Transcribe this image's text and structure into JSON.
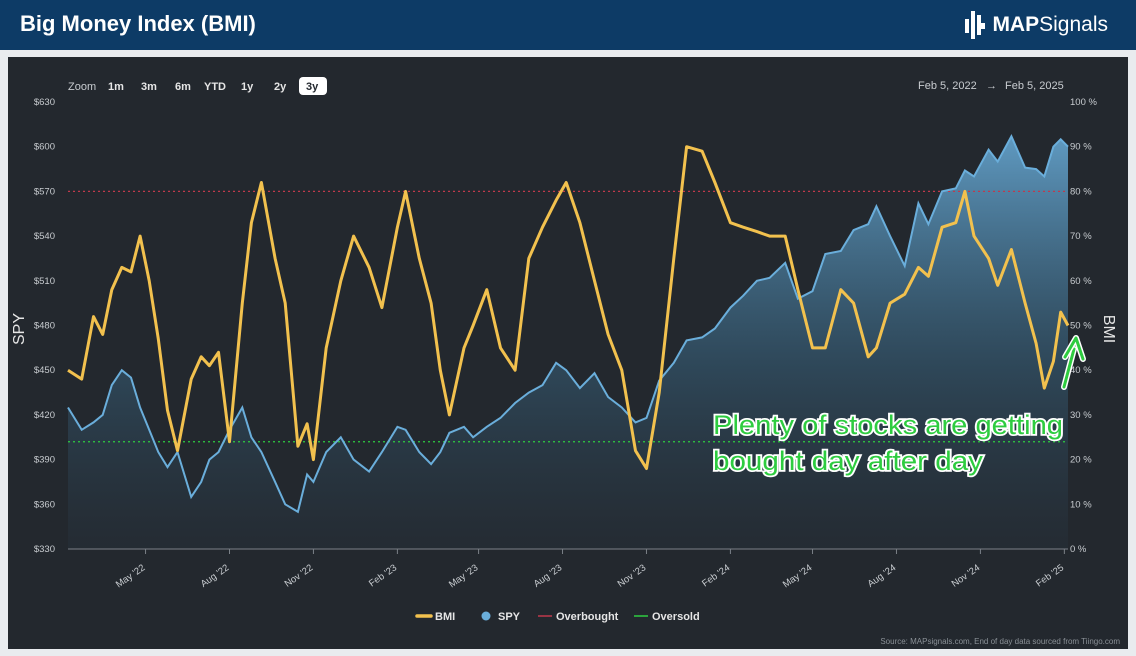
{
  "header": {
    "title": "Big Money Index (BMI)",
    "logo_bold": "MAP",
    "logo_regular": "Signals"
  },
  "toolbar": {
    "zoom_label": "Zoom",
    "buttons": [
      "1m",
      "3m",
      "6m",
      "YTD",
      "1y",
      "2y",
      "3y"
    ],
    "active": "3y",
    "date_from": "Feb 5, 2022",
    "date_arrow": "→",
    "date_to": "Feb 5, 2025"
  },
  "annotation": {
    "line1": "Plenty of stocks are getting",
    "line2": "bought day after day",
    "color": "#2ecc40"
  },
  "source": "Source: MAPsignals.com, End of day data sourced from Tiingo.com",
  "chart_data": {
    "type": "line",
    "title": "",
    "x_range": [
      "2022-02-05",
      "2025-02-05"
    ],
    "x_ticks": [
      "May '22",
      "Aug '22",
      "Nov '22",
      "Feb '23",
      "May '23",
      "Aug '23",
      "Nov '23",
      "Feb '24",
      "May '24",
      "Aug '24",
      "Nov '24",
      "Feb '25"
    ],
    "y_left": {
      "label": "SPY",
      "ticks": [
        "$630",
        "$600",
        "$570",
        "$540",
        "$510",
        "$480",
        "$450",
        "$420",
        "$390",
        "$360",
        "$330"
      ],
      "range": [
        330,
        630
      ]
    },
    "y_right": {
      "label": "BMI",
      "ticks": [
        "100 %",
        "90 %",
        "80 %",
        "70 %",
        "60 %",
        "50 %",
        "40 %",
        "30 %",
        "20 %",
        "10 %",
        "0 %"
      ],
      "range": [
        0,
        100
      ]
    },
    "legend_position": "bottom-center",
    "legend": [
      {
        "name": "BMI",
        "color": "#f2c14e"
      },
      {
        "name": "SPY",
        "color": "#6aaedb"
      },
      {
        "name": "Overbought",
        "color": "#c0394b"
      },
      {
        "name": "Oversold",
        "color": "#2ecc40"
      }
    ],
    "overbought_level": 80,
    "oversold_level": 24,
    "series": [
      {
        "name": "BMI",
        "color": "#f2c14e",
        "axis": "right",
        "points": [
          [
            "2022-02-05",
            40
          ],
          [
            "2022-02-20",
            38
          ],
          [
            "2022-03-05",
            52
          ],
          [
            "2022-03-15",
            48
          ],
          [
            "2022-03-25",
            58
          ],
          [
            "2022-04-05",
            63
          ],
          [
            "2022-04-15",
            62
          ],
          [
            "2022-04-25",
            70
          ],
          [
            "2022-05-05",
            60
          ],
          [
            "2022-05-15",
            47
          ],
          [
            "2022-05-25",
            31
          ],
          [
            "2022-06-05",
            22
          ],
          [
            "2022-06-20",
            38
          ],
          [
            "2022-07-01",
            43
          ],
          [
            "2022-07-10",
            41
          ],
          [
            "2022-07-20",
            44
          ],
          [
            "2022-08-01",
            24
          ],
          [
            "2022-08-15",
            55
          ],
          [
            "2022-08-25",
            73
          ],
          [
            "2022-09-05",
            82
          ],
          [
            "2022-09-20",
            65
          ],
          [
            "2022-10-01",
            55
          ],
          [
            "2022-10-15",
            23
          ],
          [
            "2022-10-25",
            28
          ],
          [
            "2022-11-01",
            20
          ],
          [
            "2022-11-15",
            45
          ],
          [
            "2022-12-01",
            60
          ],
          [
            "2022-12-15",
            70
          ],
          [
            "2023-01-01",
            63
          ],
          [
            "2023-01-15",
            54
          ],
          [
            "2023-02-01",
            72
          ],
          [
            "2023-02-10",
            80
          ],
          [
            "2023-02-25",
            65
          ],
          [
            "2023-03-10",
            55
          ],
          [
            "2023-03-20",
            40
          ],
          [
            "2023-03-30",
            30
          ],
          [
            "2023-04-15",
            45
          ],
          [
            "2023-04-25",
            50
          ],
          [
            "2023-05-10",
            58
          ],
          [
            "2023-05-25",
            45
          ],
          [
            "2023-06-10",
            40
          ],
          [
            "2023-06-25",
            65
          ],
          [
            "2023-07-10",
            72
          ],
          [
            "2023-07-25",
            78
          ],
          [
            "2023-08-05",
            82
          ],
          [
            "2023-08-20",
            73
          ],
          [
            "2023-09-05",
            60
          ],
          [
            "2023-09-20",
            48
          ],
          [
            "2023-10-05",
            40
          ],
          [
            "2023-10-20",
            22
          ],
          [
            "2023-11-01",
            18
          ],
          [
            "2023-11-15",
            35
          ],
          [
            "2023-12-01",
            65
          ],
          [
            "2023-12-15",
            90
          ],
          [
            "2024-01-01",
            89
          ],
          [
            "2024-01-15",
            82
          ],
          [
            "2024-02-01",
            73
          ],
          [
            "2024-02-15",
            72
          ],
          [
            "2024-03-01",
            71
          ],
          [
            "2024-03-15",
            70
          ],
          [
            "2024-04-01",
            70
          ],
          [
            "2024-04-15",
            58
          ],
          [
            "2024-05-01",
            45
          ],
          [
            "2024-05-15",
            45
          ],
          [
            "2024-06-01",
            58
          ],
          [
            "2024-06-15",
            55
          ],
          [
            "2024-07-01",
            43
          ],
          [
            "2024-07-10",
            45
          ],
          [
            "2024-07-25",
            55
          ],
          [
            "2024-08-10",
            57
          ],
          [
            "2024-08-25",
            63
          ],
          [
            "2024-09-05",
            61
          ],
          [
            "2024-09-20",
            72
          ],
          [
            "2024-10-05",
            73
          ],
          [
            "2024-10-15",
            80
          ],
          [
            "2024-10-25",
            70
          ],
          [
            "2024-11-10",
            65
          ],
          [
            "2024-11-20",
            59
          ],
          [
            "2024-12-05",
            67
          ],
          [
            "2024-12-20",
            55
          ],
          [
            "2025-01-01",
            46
          ],
          [
            "2025-01-10",
            36
          ],
          [
            "2025-01-20",
            42
          ],
          [
            "2025-01-28",
            53
          ],
          [
            "2025-02-05",
            50
          ]
        ]
      },
      {
        "name": "SPY",
        "color": "#6aaedb",
        "axis": "left",
        "points": [
          [
            "2022-02-05",
            425
          ],
          [
            "2022-02-20",
            410
          ],
          [
            "2022-03-05",
            415
          ],
          [
            "2022-03-15",
            420
          ],
          [
            "2022-03-25",
            440
          ],
          [
            "2022-04-05",
            450
          ],
          [
            "2022-04-15",
            445
          ],
          [
            "2022-04-25",
            425
          ],
          [
            "2022-05-05",
            410
          ],
          [
            "2022-05-15",
            395
          ],
          [
            "2022-05-25",
            385
          ],
          [
            "2022-06-05",
            395
          ],
          [
            "2022-06-20",
            365
          ],
          [
            "2022-07-01",
            375
          ],
          [
            "2022-07-10",
            390
          ],
          [
            "2022-07-20",
            395
          ],
          [
            "2022-08-01",
            410
          ],
          [
            "2022-08-15",
            425
          ],
          [
            "2022-08-25",
            405
          ],
          [
            "2022-09-05",
            395
          ],
          [
            "2022-09-20",
            375
          ],
          [
            "2022-10-01",
            360
          ],
          [
            "2022-10-15",
            355
          ],
          [
            "2022-10-25",
            380
          ],
          [
            "2022-11-01",
            375
          ],
          [
            "2022-11-15",
            395
          ],
          [
            "2022-12-01",
            405
          ],
          [
            "2022-12-15",
            390
          ],
          [
            "2023-01-01",
            382
          ],
          [
            "2023-01-15",
            395
          ],
          [
            "2023-02-01",
            412
          ],
          [
            "2023-02-10",
            410
          ],
          [
            "2023-02-25",
            395
          ],
          [
            "2023-03-10",
            387
          ],
          [
            "2023-03-20",
            395
          ],
          [
            "2023-03-30",
            408
          ],
          [
            "2023-04-15",
            412
          ],
          [
            "2023-04-25",
            405
          ],
          [
            "2023-05-10",
            412
          ],
          [
            "2023-05-25",
            418
          ],
          [
            "2023-06-10",
            428
          ],
          [
            "2023-06-25",
            435
          ],
          [
            "2023-07-10",
            440
          ],
          [
            "2023-07-25",
            455
          ],
          [
            "2023-08-05",
            450
          ],
          [
            "2023-08-20",
            438
          ],
          [
            "2023-09-05",
            448
          ],
          [
            "2023-09-20",
            432
          ],
          [
            "2023-10-05",
            425
          ],
          [
            "2023-10-20",
            415
          ],
          [
            "2023-11-01",
            418
          ],
          [
            "2023-11-15",
            443
          ],
          [
            "2023-12-01",
            455
          ],
          [
            "2023-12-15",
            470
          ],
          [
            "2024-01-01",
            472
          ],
          [
            "2024-01-15",
            478
          ],
          [
            "2024-02-01",
            492
          ],
          [
            "2024-02-15",
            500
          ],
          [
            "2024-03-01",
            510
          ],
          [
            "2024-03-15",
            512
          ],
          [
            "2024-04-01",
            522
          ],
          [
            "2024-04-15",
            498
          ],
          [
            "2024-05-01",
            503
          ],
          [
            "2024-05-15",
            528
          ],
          [
            "2024-06-01",
            530
          ],
          [
            "2024-06-15",
            544
          ],
          [
            "2024-07-01",
            548
          ],
          [
            "2024-07-10",
            560
          ],
          [
            "2024-07-25",
            540
          ],
          [
            "2024-08-10",
            520
          ],
          [
            "2024-08-25",
            562
          ],
          [
            "2024-09-05",
            548
          ],
          [
            "2024-09-20",
            570
          ],
          [
            "2024-10-05",
            572
          ],
          [
            "2024-10-15",
            584
          ],
          [
            "2024-10-25",
            580
          ],
          [
            "2024-11-10",
            598
          ],
          [
            "2024-11-20",
            590
          ],
          [
            "2024-12-05",
            607
          ],
          [
            "2024-12-20",
            586
          ],
          [
            "2025-01-01",
            585
          ],
          [
            "2025-01-10",
            580
          ],
          [
            "2025-01-20",
            600
          ],
          [
            "2025-01-28",
            605
          ],
          [
            "2025-02-05",
            600
          ]
        ]
      }
    ]
  }
}
